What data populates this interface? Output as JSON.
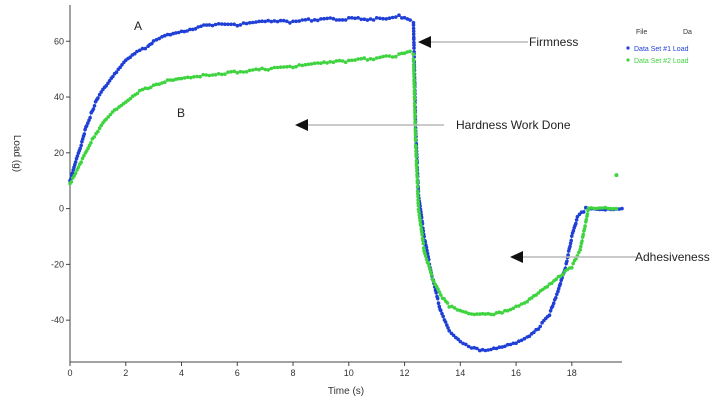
{
  "chart_data": {
    "type": "scatter",
    "xlabel": "Time (s)",
    "ylabel": "Load (g)",
    "xlim": [
      0,
      19.8
    ],
    "ylim": [
      -55,
      73
    ],
    "x_ticks": [
      0,
      2,
      4,
      6,
      8,
      10,
      12,
      14,
      16,
      18
    ],
    "y_ticks": [
      60,
      40,
      20,
      0,
      -20,
      -40
    ],
    "grid": false,
    "legend": {
      "placement": "top-right",
      "headers": [
        "File",
        "Da"
      ],
      "entries": [
        "Data Set #1 Load",
        "Data Set #2 Load"
      ]
    },
    "series": [
      {
        "label": "A",
        "legend_label": "Data Set #1 Load",
        "color": "#1f3fd6",
        "x": [
          0,
          0.2,
          0.4,
          0.6,
          0.8,
          1.0,
          1.3,
          1.6,
          2.0,
          2.4,
          2.8,
          3.0,
          3.3,
          3.7,
          4.2,
          5.0,
          6.0,
          7.0,
          8.0,
          9.0,
          10.0,
          11.0,
          11.8,
          12.2,
          12.32,
          12.4,
          12.5,
          12.7,
          13.0,
          13.3,
          13.6,
          14.0,
          14.4,
          14.8,
          15.2,
          15.6,
          16.0,
          16.4,
          16.8,
          17.2,
          17.5,
          17.8,
          18.0,
          18.2,
          18.5,
          19.0,
          19.5,
          19.8
        ],
        "y": [
          10,
          17,
          23,
          30,
          35,
          40,
          44,
          48,
          53,
          56,
          58,
          60,
          62,
          63,
          64,
          66,
          66,
          67,
          67,
          68,
          68,
          68,
          69,
          68,
          67,
          28,
          5,
          -10,
          -25,
          -37,
          -44,
          -48,
          -50,
          -51,
          -50,
          -49,
          -48,
          -46,
          -43,
          -38,
          -30,
          -20,
          -10,
          -3,
          0,
          0,
          0,
          0
        ]
      },
      {
        "label": "B",
        "legend_label": "Data Set #2 Load",
        "color": "#3fd43f",
        "x": [
          0,
          0.2,
          0.4,
          0.6,
          0.8,
          1.0,
          1.3,
          1.6,
          2.0,
          2.5,
          3.0,
          3.5,
          4.0,
          5.0,
          6.0,
          7.0,
          8.0,
          9.0,
          10.0,
          11.0,
          11.8,
          12.2,
          12.32,
          12.4,
          12.5,
          12.7,
          13.0,
          13.3,
          13.6,
          14.0,
          14.4,
          14.8,
          15.2,
          15.6,
          16.0,
          16.4,
          16.8,
          17.2,
          17.6,
          18.0,
          18.3,
          18.5,
          18.6,
          18.9,
          19.2,
          19.6
        ],
        "y": [
          9,
          13,
          17,
          21,
          25,
          28,
          32,
          35,
          38,
          42,
          44,
          46,
          47,
          48,
          49,
          50,
          51,
          52,
          53,
          54,
          55,
          56,
          55,
          23,
          0,
          -15,
          -25,
          -31,
          -35,
          -37,
          -38,
          -38,
          -38,
          -37,
          -35,
          -33,
          -30,
          -27,
          -24,
          -21,
          -15,
          -5,
          0,
          0,
          0,
          0
        ]
      }
    ],
    "annotations": [
      "Firmness",
      "Hardness Work Done",
      "Adhesiveness"
    ]
  }
}
